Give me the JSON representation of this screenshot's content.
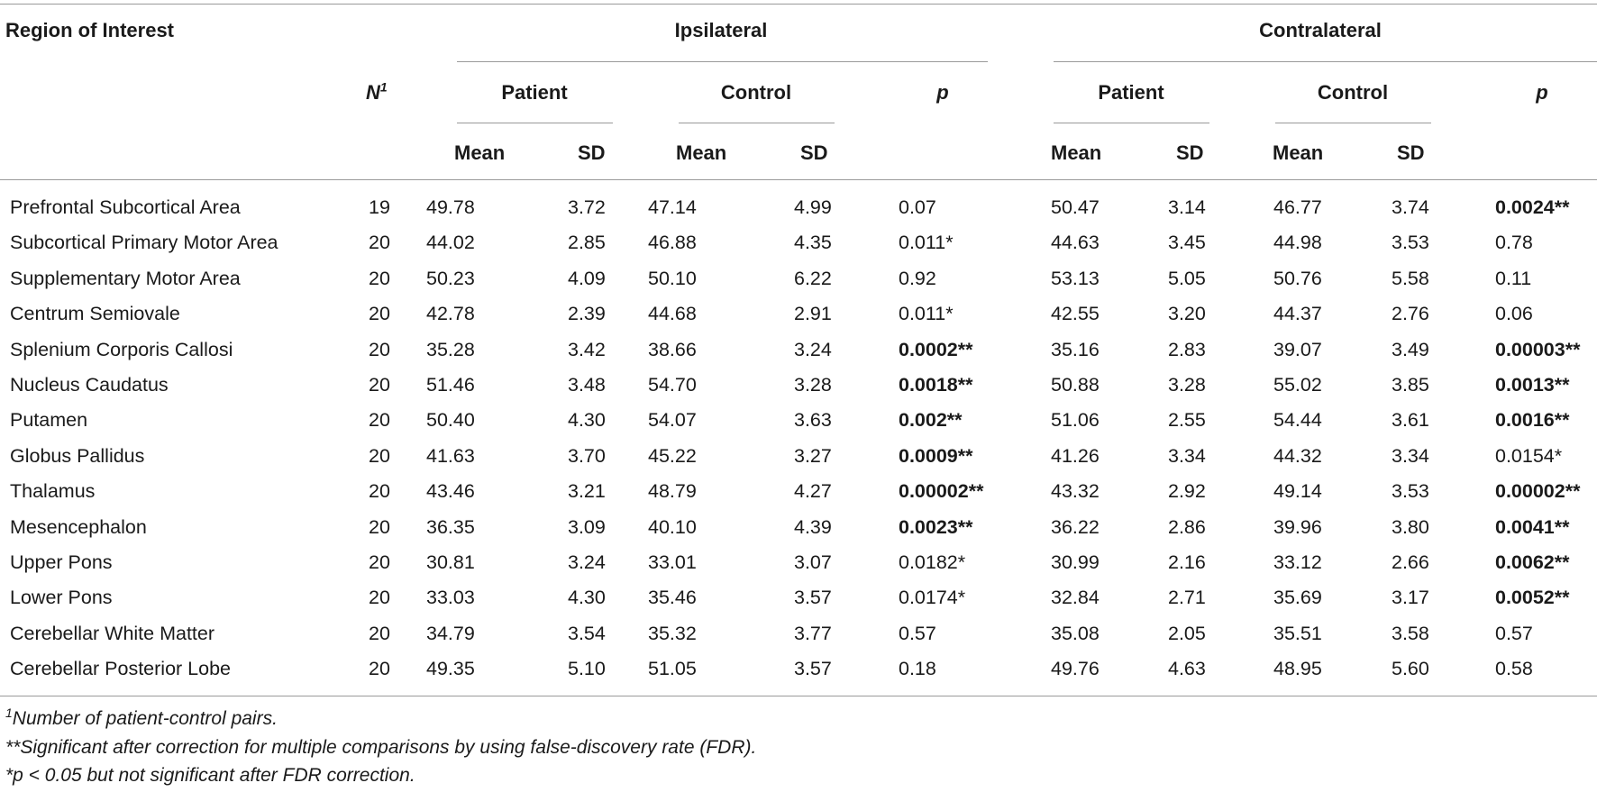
{
  "table": {
    "header": {
      "roi": "Region of Interest",
      "n": "N",
      "n_sup": "1",
      "ipsilateral": "Ipsilateral",
      "contralateral": "Contralateral",
      "patient": "Patient",
      "control": "Control",
      "p": "p",
      "mean": "Mean",
      "sd": "SD"
    },
    "rows": [
      {
        "region": "Prefrontal Subcortical Area",
        "n": "19",
        "ipsi": {
          "pat_mean": "49.78",
          "pat_sd": "3.72",
          "ctl_mean": "47.14",
          "ctl_sd": "4.99",
          "p": "0.07",
          "p_bold": false
        },
        "contra": {
          "pat_mean": "50.47",
          "pat_sd": "3.14",
          "ctl_mean": "46.77",
          "ctl_sd": "3.74",
          "p": "0.0024**",
          "p_bold": true
        }
      },
      {
        "region": "Subcortical Primary Motor Area",
        "n": "20",
        "ipsi": {
          "pat_mean": "44.02",
          "pat_sd": "2.85",
          "ctl_mean": "46.88",
          "ctl_sd": "4.35",
          "p": "0.011*",
          "p_bold": false
        },
        "contra": {
          "pat_mean": "44.63",
          "pat_sd": "3.45",
          "ctl_mean": "44.98",
          "ctl_sd": "3.53",
          "p": "0.78",
          "p_bold": false
        }
      },
      {
        "region": "Supplementary Motor Area",
        "n": "20",
        "ipsi": {
          "pat_mean": "50.23",
          "pat_sd": "4.09",
          "ctl_mean": "50.10",
          "ctl_sd": "6.22",
          "p": "0.92",
          "p_bold": false
        },
        "contra": {
          "pat_mean": "53.13",
          "pat_sd": "5.05",
          "ctl_mean": "50.76",
          "ctl_sd": "5.58",
          "p": "0.11",
          "p_bold": false
        }
      },
      {
        "region": "Centrum Semiovale",
        "n": "20",
        "ipsi": {
          "pat_mean": "42.78",
          "pat_sd": "2.39",
          "ctl_mean": "44.68",
          "ctl_sd": "2.91",
          "p": "0.011*",
          "p_bold": false
        },
        "contra": {
          "pat_mean": "42.55",
          "pat_sd": "3.20",
          "ctl_mean": "44.37",
          "ctl_sd": "2.76",
          "p": "0.06",
          "p_bold": false
        }
      },
      {
        "region": "Splenium Corporis Callosi",
        "n": "20",
        "ipsi": {
          "pat_mean": "35.28",
          "pat_sd": "3.42",
          "ctl_mean": "38.66",
          "ctl_sd": "3.24",
          "p": "0.0002**",
          "p_bold": true
        },
        "contra": {
          "pat_mean": "35.16",
          "pat_sd": "2.83",
          "ctl_mean": "39.07",
          "ctl_sd": "3.49",
          "p": "0.00003**",
          "p_bold": true
        }
      },
      {
        "region": "Nucleus Caudatus",
        "n": "20",
        "ipsi": {
          "pat_mean": "51.46",
          "pat_sd": "3.48",
          "ctl_mean": "54.70",
          "ctl_sd": "3.28",
          "p": "0.0018**",
          "p_bold": true
        },
        "contra": {
          "pat_mean": "50.88",
          "pat_sd": "3.28",
          "ctl_mean": "55.02",
          "ctl_sd": "3.85",
          "p": "0.0013**",
          "p_bold": true
        }
      },
      {
        "region": "Putamen",
        "n": "20",
        "ipsi": {
          "pat_mean": "50.40",
          "pat_sd": "4.30",
          "ctl_mean": "54.07",
          "ctl_sd": "3.63",
          "p": "0.002**",
          "p_bold": true
        },
        "contra": {
          "pat_mean": "51.06",
          "pat_sd": "2.55",
          "ctl_mean": "54.44",
          "ctl_sd": "3.61",
          "p": "0.0016**",
          "p_bold": true
        }
      },
      {
        "region": "Globus Pallidus",
        "n": "20",
        "ipsi": {
          "pat_mean": "41.63",
          "pat_sd": "3.70",
          "ctl_mean": "45.22",
          "ctl_sd": "3.27",
          "p": "0.0009**",
          "p_bold": true
        },
        "contra": {
          "pat_mean": "41.26",
          "pat_sd": "3.34",
          "ctl_mean": "44.32",
          "ctl_sd": "3.34",
          "p": "0.0154*",
          "p_bold": false
        }
      },
      {
        "region": "Thalamus",
        "n": "20",
        "ipsi": {
          "pat_mean": "43.46",
          "pat_sd": "3.21",
          "ctl_mean": "48.79",
          "ctl_sd": "4.27",
          "p": "0.00002**",
          "p_bold": true
        },
        "contra": {
          "pat_mean": "43.32",
          "pat_sd": "2.92",
          "ctl_mean": "49.14",
          "ctl_sd": "3.53",
          "p": "0.00002**",
          "p_bold": true
        }
      },
      {
        "region": "Mesencephalon",
        "n": "20",
        "ipsi": {
          "pat_mean": "36.35",
          "pat_sd": "3.09",
          "ctl_mean": "40.10",
          "ctl_sd": "4.39",
          "p": "0.0023**",
          "p_bold": true
        },
        "contra": {
          "pat_mean": "36.22",
          "pat_sd": "2.86",
          "ctl_mean": "39.96",
          "ctl_sd": "3.80",
          "p": "0.0041**",
          "p_bold": true
        }
      },
      {
        "region": "Upper Pons",
        "n": "20",
        "ipsi": {
          "pat_mean": "30.81",
          "pat_sd": "3.24",
          "ctl_mean": "33.01",
          "ctl_sd": "3.07",
          "p": "0.0182*",
          "p_bold": false
        },
        "contra": {
          "pat_mean": "30.99",
          "pat_sd": "2.16",
          "ctl_mean": "33.12",
          "ctl_sd": "2.66",
          "p": "0.0062**",
          "p_bold": true
        }
      },
      {
        "region": "Lower Pons",
        "n": "20",
        "ipsi": {
          "pat_mean": "33.03",
          "pat_sd": "4.30",
          "ctl_mean": "35.46",
          "ctl_sd": "3.57",
          "p": "0.0174*",
          "p_bold": false
        },
        "contra": {
          "pat_mean": "32.84",
          "pat_sd": "2.71",
          "ctl_mean": "35.69",
          "ctl_sd": "3.17",
          "p": "0.0052**",
          "p_bold": true
        }
      },
      {
        "region": "Cerebellar White Matter",
        "n": "20",
        "ipsi": {
          "pat_mean": "34.79",
          "pat_sd": "3.54",
          "ctl_mean": "35.32",
          "ctl_sd": "3.77",
          "p": "0.57",
          "p_bold": false
        },
        "contra": {
          "pat_mean": "35.08",
          "pat_sd": "2.05",
          "ctl_mean": "35.51",
          "ctl_sd": "3.58",
          "p": "0.57",
          "p_bold": false
        }
      },
      {
        "region": "Cerebellar Posterior Lobe",
        "n": "20",
        "ipsi": {
          "pat_mean": "49.35",
          "pat_sd": "5.10",
          "ctl_mean": "51.05",
          "ctl_sd": "3.57",
          "p": "0.18",
          "p_bold": false
        },
        "contra": {
          "pat_mean": "49.76",
          "pat_sd": "4.63",
          "ctl_mean": "48.95",
          "ctl_sd": "5.60",
          "p": "0.58",
          "p_bold": false
        }
      }
    ]
  },
  "footnotes": {
    "note1_sup": "1",
    "note1": "Number of patient-control pairs.",
    "note2": "**Significant after correction for multiple comparisons by using false-discovery rate (FDR).",
    "note3": "*p < 0.05 but not significant after FDR correction."
  }
}
